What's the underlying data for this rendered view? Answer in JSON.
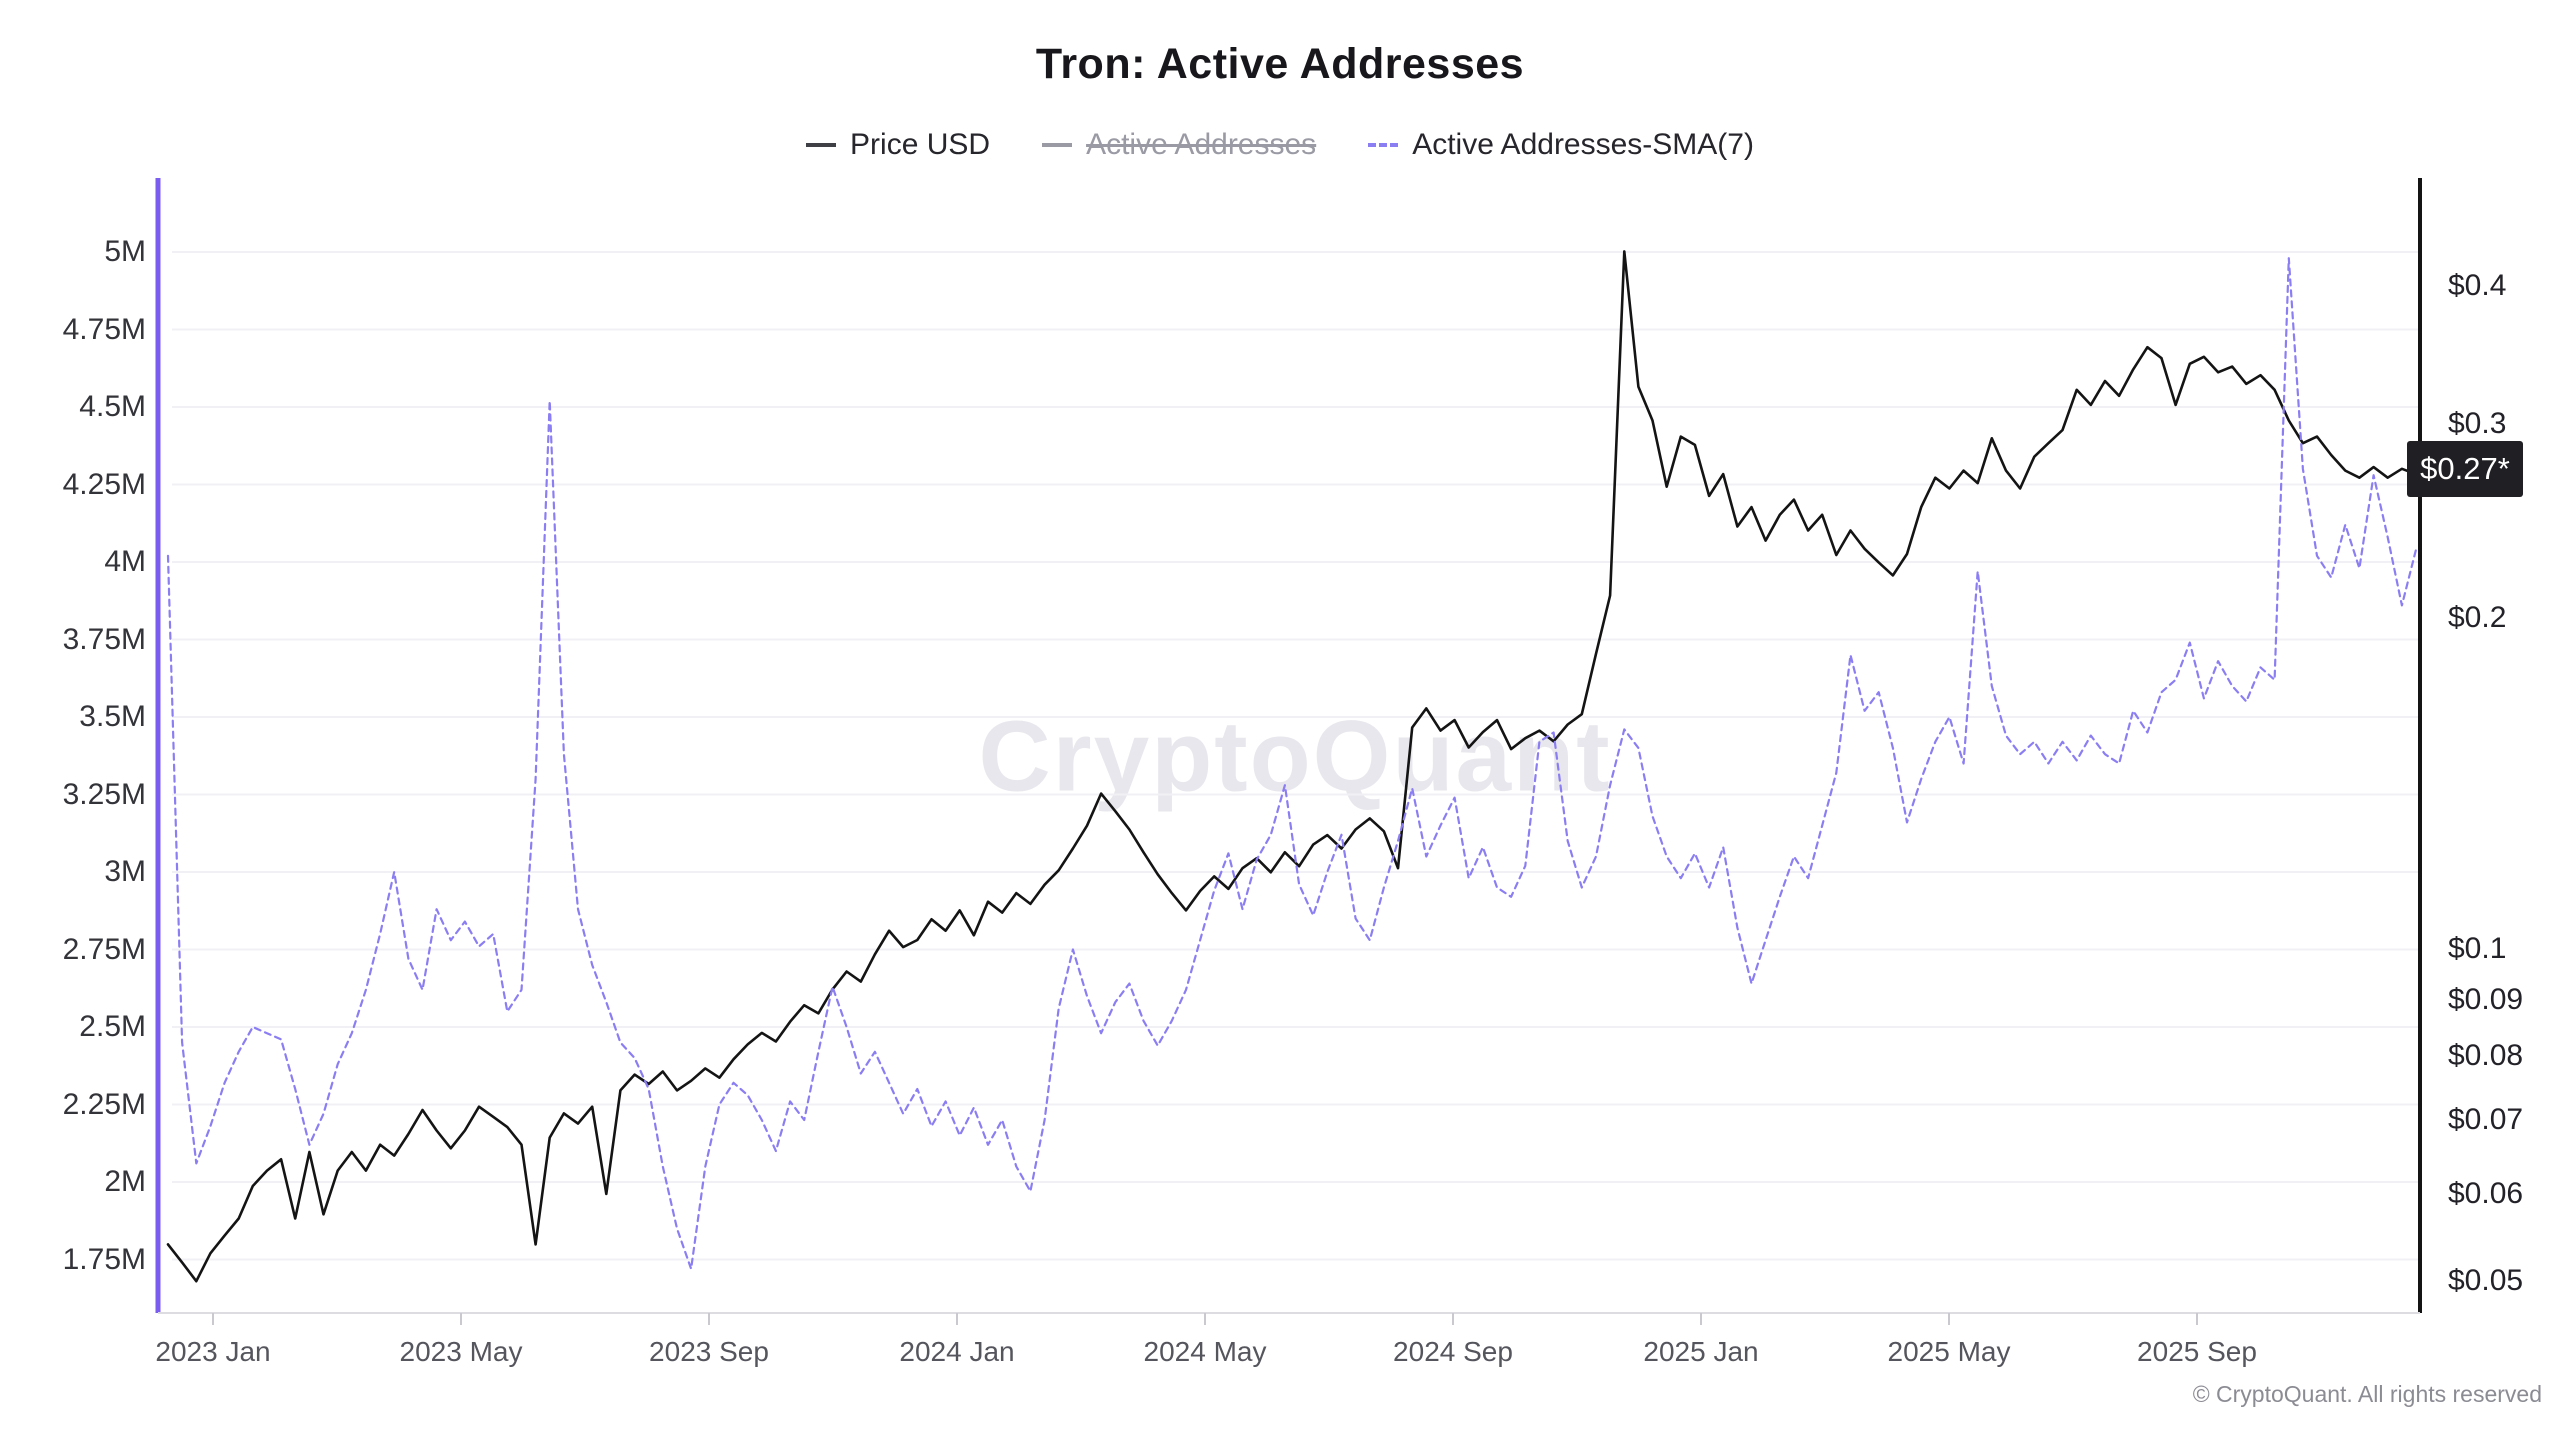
{
  "header": {
    "title": "Tron: Active Addresses"
  },
  "legend": {
    "items": [
      {
        "label": "Price USD",
        "color": "#3f3f46",
        "style": "solid",
        "enabled": true
      },
      {
        "label": "Active Addresses",
        "color": "#9a9aa4",
        "style": "solid",
        "enabled": false
      },
      {
        "label": "Active Addresses-SMA(7)",
        "color": "#8b7ef2",
        "style": "dashed",
        "enabled": true
      }
    ]
  },
  "watermark": "CryptoQuant",
  "footer": "© CryptoQuant. All rights reserved",
  "chart_data": {
    "type": "line",
    "title": "Tron: Active Addresses",
    "legend_position": "top",
    "grid": "horizontal",
    "x_axis": {
      "tick_labels": [
        "2023 Jan",
        "2023 May",
        "2023 Sep",
        "2024 Jan",
        "2024 May",
        "2024 Sep",
        "2025 Jan",
        "2025 May",
        "2025 Sep"
      ],
      "sampling": "weekly points, Dec 2022 through Dec 2025"
    },
    "left_axis": {
      "series": "Active Addresses-SMA(7)",
      "scale": "linear",
      "unit": "addresses",
      "axis_color": "#7b5cf1",
      "ticks": [
        {
          "label": "5M",
          "value": 5.0
        },
        {
          "label": "4.75M",
          "value": 4.75
        },
        {
          "label": "4.5M",
          "value": 4.5
        },
        {
          "label": "4.25M",
          "value": 4.25
        },
        {
          "label": "4M",
          "value": 4.0
        },
        {
          "label": "3.75M",
          "value": 3.75
        },
        {
          "label": "3.5M",
          "value": 3.5
        },
        {
          "label": "3.25M",
          "value": 3.25
        },
        {
          "label": "3M",
          "value": 3.0
        },
        {
          "label": "2.75M",
          "value": 2.75
        },
        {
          "label": "2.5M",
          "value": 2.5
        },
        {
          "label": "2.25M",
          "value": 2.25
        },
        {
          "label": "2M",
          "value": 2.0
        },
        {
          "label": "1.75M",
          "value": 1.75
        }
      ]
    },
    "right_axis": {
      "series": "Price USD",
      "scale": "log",
      "unit": "USD",
      "axis_color": "#141414",
      "ticks": [
        {
          "label": "$0.4",
          "value": 0.4
        },
        {
          "label": "$0.3",
          "value": 0.3
        },
        {
          "label": "$0.2",
          "value": 0.2
        },
        {
          "label": "$0.1",
          "value": 0.1
        },
        {
          "label": "$0.09",
          "value": 0.09
        },
        {
          "label": "$0.08",
          "value": 0.08
        },
        {
          "label": "$0.07",
          "value": 0.07
        },
        {
          "label": "$0.06",
          "value": 0.06
        },
        {
          "label": "$0.05",
          "value": 0.05
        }
      ],
      "current_label": "$0.27*",
      "current_value": 0.27
    },
    "series": [
      {
        "name": "Price USD",
        "axis": "right",
        "color": "#141414",
        "style": "solid",
        "unit": "USD",
        "values": [
          0.054,
          0.052,
          0.05,
          0.053,
          0.055,
          0.057,
          0.061,
          0.063,
          0.0645,
          0.057,
          0.0655,
          0.0575,
          0.063,
          0.0655,
          0.063,
          0.0665,
          0.065,
          0.068,
          0.0715,
          0.0685,
          0.066,
          0.0685,
          0.072,
          0.0705,
          0.069,
          0.0665,
          0.054,
          0.0675,
          0.071,
          0.0695,
          0.072,
          0.06,
          0.0745,
          0.077,
          0.0755,
          0.0775,
          0.0745,
          0.076,
          0.078,
          0.0765,
          0.0795,
          0.082,
          0.084,
          0.0825,
          0.086,
          0.089,
          0.0875,
          0.092,
          0.0955,
          0.0935,
          0.099,
          0.104,
          0.1005,
          0.102,
          0.1065,
          0.104,
          0.1085,
          0.103,
          0.1105,
          0.108,
          0.1125,
          0.11,
          0.1145,
          0.118,
          0.1235,
          0.1295,
          0.1385,
          0.1335,
          0.1285,
          0.1225,
          0.117,
          0.1125,
          0.1085,
          0.113,
          0.1165,
          0.1135,
          0.1185,
          0.121,
          0.1175,
          0.1225,
          0.119,
          0.1245,
          0.127,
          0.1235,
          0.1285,
          0.1315,
          0.128,
          0.1185,
          0.159,
          0.1655,
          0.158,
          0.1615,
          0.1525,
          0.1575,
          0.1615,
          0.152,
          0.1555,
          0.158,
          0.1545,
          0.16,
          0.1635,
          0.1855,
          0.2095,
          0.43,
          0.324,
          0.302,
          0.263,
          0.292,
          0.287,
          0.258,
          0.27,
          0.242,
          0.252,
          0.235,
          0.248,
          0.256,
          0.24,
          0.248,
          0.228,
          0.24,
          0.231,
          0.2245,
          0.2185,
          0.2285,
          0.252,
          0.268,
          0.262,
          0.272,
          0.265,
          0.291,
          0.272,
          0.262,
          0.28,
          0.288,
          0.296,
          0.322,
          0.312,
          0.328,
          0.318,
          0.336,
          0.352,
          0.344,
          0.312,
          0.34,
          0.345,
          0.334,
          0.338,
          0.326,
          0.332,
          0.322,
          0.302,
          0.288,
          0.292,
          0.281,
          0.272,
          0.268,
          0.274,
          0.268,
          0.273,
          0.27
        ]
      },
      {
        "name": "Active Addresses-SMA(7)",
        "axis": "left",
        "color": "#8b7ef2",
        "style": "dashed",
        "unit": "millions of addresses",
        "values": [
          4.02,
          2.45,
          2.06,
          2.18,
          2.32,
          2.42,
          2.5,
          2.48,
          2.46,
          2.3,
          2.12,
          2.22,
          2.38,
          2.48,
          2.62,
          2.8,
          3.0,
          2.72,
          2.62,
          2.88,
          2.78,
          2.84,
          2.76,
          2.8,
          2.55,
          2.62,
          3.3,
          4.52,
          3.38,
          2.88,
          2.7,
          2.58,
          2.45,
          2.4,
          2.3,
          2.05,
          1.85,
          1.72,
          2.05,
          2.25,
          2.32,
          2.28,
          2.2,
          2.1,
          2.26,
          2.2,
          2.42,
          2.63,
          2.5,
          2.35,
          2.42,
          2.32,
          2.22,
          2.3,
          2.18,
          2.26,
          2.15,
          2.24,
          2.12,
          2.2,
          2.05,
          1.97,
          2.2,
          2.56,
          2.75,
          2.6,
          2.48,
          2.58,
          2.64,
          2.52,
          2.44,
          2.52,
          2.62,
          2.78,
          2.94,
          3.06,
          2.88,
          3.04,
          3.12,
          3.28,
          2.96,
          2.86,
          3.0,
          3.12,
          2.85,
          2.78,
          2.95,
          3.1,
          3.27,
          3.05,
          3.15,
          3.24,
          2.98,
          3.08,
          2.95,
          2.92,
          3.02,
          3.42,
          3.45,
          3.1,
          2.95,
          3.05,
          3.28,
          3.46,
          3.4,
          3.18,
          3.05,
          2.98,
          3.06,
          2.95,
          3.08,
          2.82,
          2.64,
          2.78,
          2.92,
          3.05,
          2.98,
          3.15,
          3.32,
          3.7,
          3.52,
          3.58,
          3.4,
          3.16,
          3.3,
          3.42,
          3.5,
          3.35,
          3.97,
          3.6,
          3.44,
          3.38,
          3.42,
          3.35,
          3.42,
          3.36,
          3.44,
          3.38,
          3.35,
          3.52,
          3.45,
          3.58,
          3.62,
          3.74,
          3.56,
          3.68,
          3.6,
          3.55,
          3.66,
          3.62,
          4.98,
          4.3,
          4.02,
          3.95,
          4.12,
          3.98,
          4.28,
          4.08,
          3.86,
          4.04
        ]
      },
      {
        "name": "Active Addresses",
        "axis": "left",
        "color": "#9a9aa4",
        "style": "solid",
        "visible": false,
        "values": []
      }
    ]
  }
}
